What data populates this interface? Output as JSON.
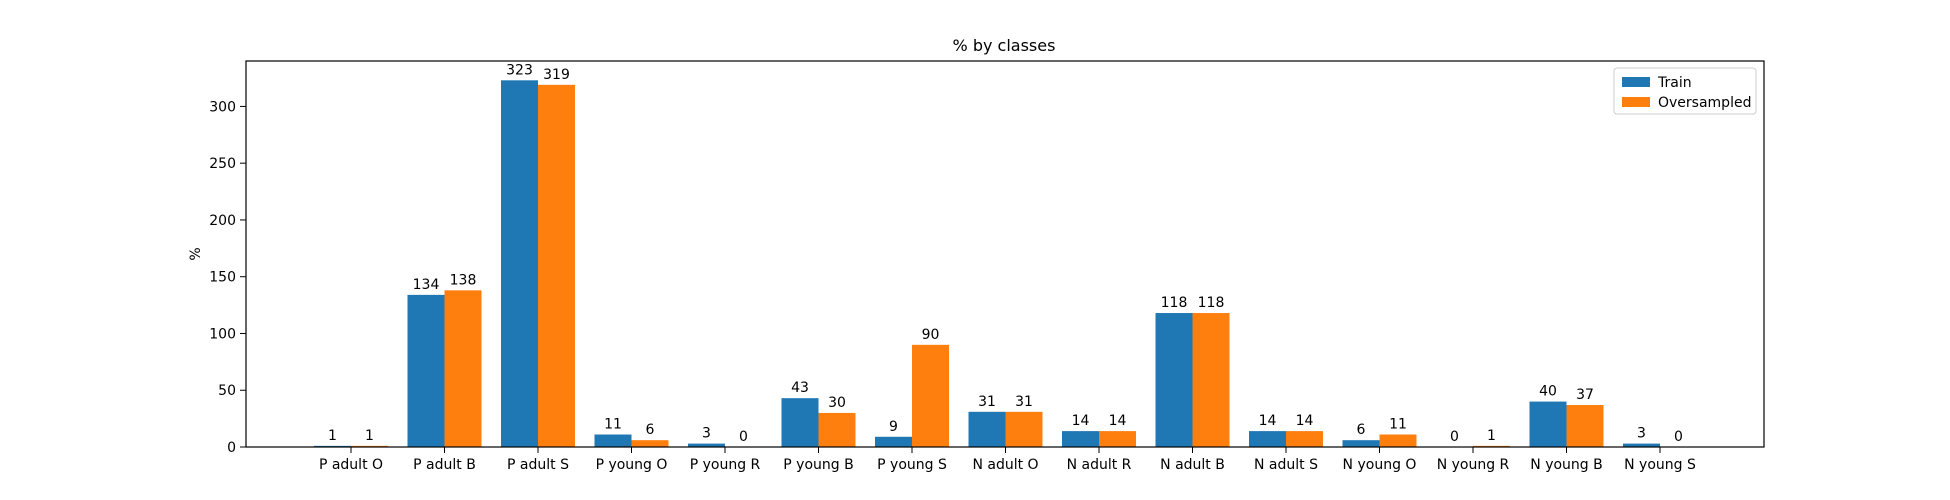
{
  "chart_data": {
    "type": "bar",
    "title": "% by classes",
    "xlabel": "",
    "ylabel": "%",
    "ylim": [
      0,
      340
    ],
    "yticks": [
      0,
      50,
      100,
      150,
      200,
      250,
      300
    ],
    "categories": [
      "P adult O",
      "P adult B",
      "P adult S",
      "P young O",
      "P young R",
      "P young B",
      "P young S",
      "N adult O",
      "N adult R",
      "N adult B",
      "N adult S",
      "N young O",
      "N young R",
      "N young B",
      "N young S"
    ],
    "series": [
      {
        "name": "Train",
        "color": "#1f77b4",
        "values": [
          1,
          134,
          323,
          11,
          3,
          43,
          9,
          31,
          14,
          118,
          14,
          6,
          0,
          40,
          3
        ]
      },
      {
        "name": "Oversampled",
        "color": "#ff7f0e",
        "values": [
          1,
          138,
          319,
          6,
          0,
          30,
          90,
          31,
          14,
          118,
          14,
          11,
          1,
          37,
          0
        ]
      }
    ],
    "legend_position": "top-right",
    "grid": false
  }
}
